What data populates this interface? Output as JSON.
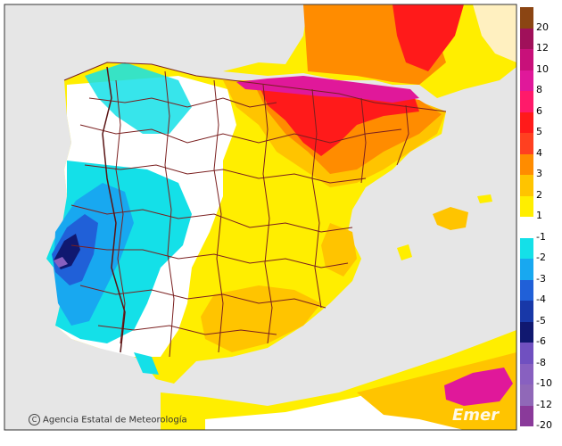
{
  "map": {
    "credit": "Agencia Estatal de Meteorología",
    "credit_symbol": "C",
    "brand": "Emer",
    "colors": {
      "sea": "#e6e6e6",
      "border_line": "#7a1f1f",
      "frame": "#333333"
    }
  },
  "legend": {
    "items": [
      {
        "label": "20",
        "color": "#8b4513"
      },
      {
        "label": "12",
        "color": "#a0105a"
      },
      {
        "label": "10",
        "color": "#c8107a"
      },
      {
        "label": "8",
        "color": "#e0189a"
      },
      {
        "label": "6",
        "color": "#ff1a6a"
      },
      {
        "label": "5",
        "color": "#ff1a1a"
      },
      {
        "label": "4",
        "color": "#ff4020"
      },
      {
        "label": "3",
        "color": "#ff8c00"
      },
      {
        "label": "2",
        "color": "#ffc400"
      },
      {
        "label": "1",
        "color": "#ffee00"
      },
      {
        "label": "-1",
        "color": "#ffffff"
      },
      {
        "label": "-2",
        "color": "#14e0e8"
      },
      {
        "label": "-3",
        "color": "#18a8f0"
      },
      {
        "label": "-4",
        "color": "#2060d8"
      },
      {
        "label": "-5",
        "color": "#1838a8"
      },
      {
        "label": "-6",
        "color": "#101870"
      },
      {
        "label": "-8",
        "color": "#7050c0"
      },
      {
        "label": "-10",
        "color": "#8860c0"
      },
      {
        "label": "-12",
        "color": "#9068b8"
      },
      {
        "label": "-20",
        "color": "#8a3a9a"
      }
    ]
  }
}
